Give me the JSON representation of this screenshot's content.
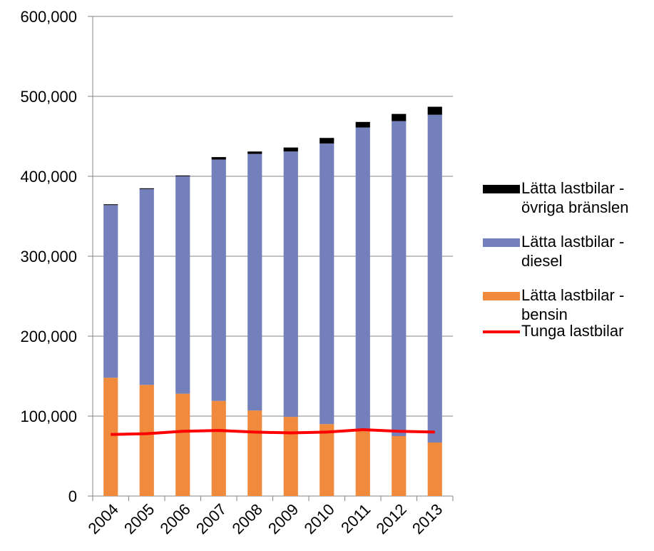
{
  "chart_data": {
    "type": "stacked-bar-line",
    "categories": [
      "2004",
      "2005",
      "2006",
      "2007",
      "2008",
      "2009",
      "2010",
      "2011",
      "2012",
      "2013"
    ],
    "series": [
      {
        "name": "Lätta lastbilar - bensin",
        "color": "#f08a3c",
        "type": "bar",
        "values": [
          148000,
          139000,
          128000,
          119000,
          107000,
          99000,
          90000,
          82000,
          75000,
          67000
        ]
      },
      {
        "name": "Lätta lastbilar - diesel",
        "color": "#7480bb",
        "type": "bar",
        "values": [
          216000,
          245000,
          272000,
          302000,
          321000,
          332000,
          351000,
          379000,
          394000,
          410000
        ]
      },
      {
        "name": "Lätta lastbilar - övriga bränslen",
        "color": "#000000",
        "type": "bar",
        "values": [
          1000,
          1000,
          1000,
          3000,
          3000,
          5000,
          7000,
          7000,
          9000,
          10000
        ]
      },
      {
        "name": "Tunga lastbilar",
        "color": "#ff0000",
        "type": "line",
        "values": [
          77000,
          78000,
          81000,
          82000,
          80000,
          79000,
          80000,
          83000,
          81000,
          80000
        ]
      }
    ],
    "ylim": [
      0,
      600000
    ],
    "yticks": [
      0,
      {
        "value": 100000,
        "label": "100,000"
      },
      {
        "value": 200000,
        "label": "200,000"
      },
      {
        "value": 300000,
        "label": "300,000"
      },
      {
        "value": 400000,
        "label": "400,000"
      },
      {
        "value": 500000,
        "label": "500,000"
      },
      {
        "value": 600000,
        "label": "600,000"
      }
    ],
    "grid": true,
    "legend": "right"
  }
}
